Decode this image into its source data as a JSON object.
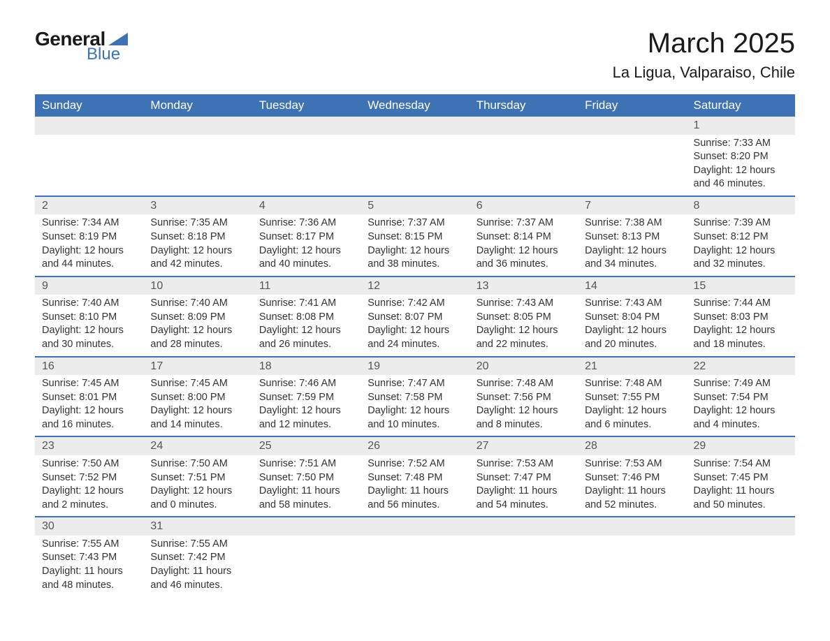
{
  "logo": {
    "text_general": "General",
    "text_blue": "Blue",
    "shape_color": "#3d72b4"
  },
  "title": "March 2025",
  "location": "La Ligua, Valparaiso, Chile",
  "colors": {
    "header_bg": "#3d72b4",
    "header_text": "#ffffff",
    "daynum_bg": "#ececec",
    "row_border": "#3d72b4",
    "body_text": "#333333",
    "page_bg": "#ffffff"
  },
  "typography": {
    "title_fontsize": 40,
    "location_fontsize": 22,
    "header_fontsize": 17,
    "cell_fontsize": 14.5,
    "daynum_fontsize": 16
  },
  "day_headers": [
    "Sunday",
    "Monday",
    "Tuesday",
    "Wednesday",
    "Thursday",
    "Friday",
    "Saturday"
  ],
  "weeks": [
    [
      null,
      null,
      null,
      null,
      null,
      null,
      {
        "n": "1",
        "sunrise": "Sunrise: 7:33 AM",
        "sunset": "Sunset: 8:20 PM",
        "daylight": "Daylight: 12 hours and 46 minutes."
      }
    ],
    [
      {
        "n": "2",
        "sunrise": "Sunrise: 7:34 AM",
        "sunset": "Sunset: 8:19 PM",
        "daylight": "Daylight: 12 hours and 44 minutes."
      },
      {
        "n": "3",
        "sunrise": "Sunrise: 7:35 AM",
        "sunset": "Sunset: 8:18 PM",
        "daylight": "Daylight: 12 hours and 42 minutes."
      },
      {
        "n": "4",
        "sunrise": "Sunrise: 7:36 AM",
        "sunset": "Sunset: 8:17 PM",
        "daylight": "Daylight: 12 hours and 40 minutes."
      },
      {
        "n": "5",
        "sunrise": "Sunrise: 7:37 AM",
        "sunset": "Sunset: 8:15 PM",
        "daylight": "Daylight: 12 hours and 38 minutes."
      },
      {
        "n": "6",
        "sunrise": "Sunrise: 7:37 AM",
        "sunset": "Sunset: 8:14 PM",
        "daylight": "Daylight: 12 hours and 36 minutes."
      },
      {
        "n": "7",
        "sunrise": "Sunrise: 7:38 AM",
        "sunset": "Sunset: 8:13 PM",
        "daylight": "Daylight: 12 hours and 34 minutes."
      },
      {
        "n": "8",
        "sunrise": "Sunrise: 7:39 AM",
        "sunset": "Sunset: 8:12 PM",
        "daylight": "Daylight: 12 hours and 32 minutes."
      }
    ],
    [
      {
        "n": "9",
        "sunrise": "Sunrise: 7:40 AM",
        "sunset": "Sunset: 8:10 PM",
        "daylight": "Daylight: 12 hours and 30 minutes."
      },
      {
        "n": "10",
        "sunrise": "Sunrise: 7:40 AM",
        "sunset": "Sunset: 8:09 PM",
        "daylight": "Daylight: 12 hours and 28 minutes."
      },
      {
        "n": "11",
        "sunrise": "Sunrise: 7:41 AM",
        "sunset": "Sunset: 8:08 PM",
        "daylight": "Daylight: 12 hours and 26 minutes."
      },
      {
        "n": "12",
        "sunrise": "Sunrise: 7:42 AM",
        "sunset": "Sunset: 8:07 PM",
        "daylight": "Daylight: 12 hours and 24 minutes."
      },
      {
        "n": "13",
        "sunrise": "Sunrise: 7:43 AM",
        "sunset": "Sunset: 8:05 PM",
        "daylight": "Daylight: 12 hours and 22 minutes."
      },
      {
        "n": "14",
        "sunrise": "Sunrise: 7:43 AM",
        "sunset": "Sunset: 8:04 PM",
        "daylight": "Daylight: 12 hours and 20 minutes."
      },
      {
        "n": "15",
        "sunrise": "Sunrise: 7:44 AM",
        "sunset": "Sunset: 8:03 PM",
        "daylight": "Daylight: 12 hours and 18 minutes."
      }
    ],
    [
      {
        "n": "16",
        "sunrise": "Sunrise: 7:45 AM",
        "sunset": "Sunset: 8:01 PM",
        "daylight": "Daylight: 12 hours and 16 minutes."
      },
      {
        "n": "17",
        "sunrise": "Sunrise: 7:45 AM",
        "sunset": "Sunset: 8:00 PM",
        "daylight": "Daylight: 12 hours and 14 minutes."
      },
      {
        "n": "18",
        "sunrise": "Sunrise: 7:46 AM",
        "sunset": "Sunset: 7:59 PM",
        "daylight": "Daylight: 12 hours and 12 minutes."
      },
      {
        "n": "19",
        "sunrise": "Sunrise: 7:47 AM",
        "sunset": "Sunset: 7:58 PM",
        "daylight": "Daylight: 12 hours and 10 minutes."
      },
      {
        "n": "20",
        "sunrise": "Sunrise: 7:48 AM",
        "sunset": "Sunset: 7:56 PM",
        "daylight": "Daylight: 12 hours and 8 minutes."
      },
      {
        "n": "21",
        "sunrise": "Sunrise: 7:48 AM",
        "sunset": "Sunset: 7:55 PM",
        "daylight": "Daylight: 12 hours and 6 minutes."
      },
      {
        "n": "22",
        "sunrise": "Sunrise: 7:49 AM",
        "sunset": "Sunset: 7:54 PM",
        "daylight": "Daylight: 12 hours and 4 minutes."
      }
    ],
    [
      {
        "n": "23",
        "sunrise": "Sunrise: 7:50 AM",
        "sunset": "Sunset: 7:52 PM",
        "daylight": "Daylight: 12 hours and 2 minutes."
      },
      {
        "n": "24",
        "sunrise": "Sunrise: 7:50 AM",
        "sunset": "Sunset: 7:51 PM",
        "daylight": "Daylight: 12 hours and 0 minutes."
      },
      {
        "n": "25",
        "sunrise": "Sunrise: 7:51 AM",
        "sunset": "Sunset: 7:50 PM",
        "daylight": "Daylight: 11 hours and 58 minutes."
      },
      {
        "n": "26",
        "sunrise": "Sunrise: 7:52 AM",
        "sunset": "Sunset: 7:48 PM",
        "daylight": "Daylight: 11 hours and 56 minutes."
      },
      {
        "n": "27",
        "sunrise": "Sunrise: 7:53 AM",
        "sunset": "Sunset: 7:47 PM",
        "daylight": "Daylight: 11 hours and 54 minutes."
      },
      {
        "n": "28",
        "sunrise": "Sunrise: 7:53 AM",
        "sunset": "Sunset: 7:46 PM",
        "daylight": "Daylight: 11 hours and 52 minutes."
      },
      {
        "n": "29",
        "sunrise": "Sunrise: 7:54 AM",
        "sunset": "Sunset: 7:45 PM",
        "daylight": "Daylight: 11 hours and 50 minutes."
      }
    ],
    [
      {
        "n": "30",
        "sunrise": "Sunrise: 7:55 AM",
        "sunset": "Sunset: 7:43 PM",
        "daylight": "Daylight: 11 hours and 48 minutes."
      },
      {
        "n": "31",
        "sunrise": "Sunrise: 7:55 AM",
        "sunset": "Sunset: 7:42 PM",
        "daylight": "Daylight: 11 hours and 46 minutes."
      },
      null,
      null,
      null,
      null,
      null
    ]
  ]
}
